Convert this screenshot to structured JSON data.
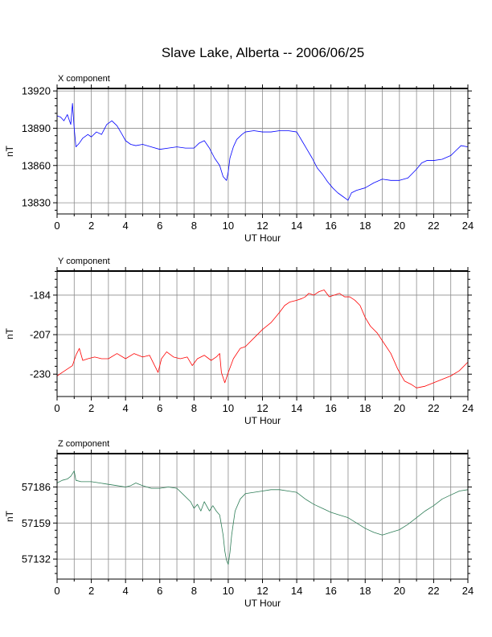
{
  "title": "Slave Lake, Alberta -- 2006/06/25",
  "chart_data": [
    {
      "type": "line",
      "panel_title": "X component",
      "xlabel": "UT Hour",
      "ylabel": "nT",
      "color": "#0000ff",
      "xlim": [
        0,
        24
      ],
      "ylim": [
        13821,
        13922
      ],
      "xticks": [
        0,
        2,
        4,
        6,
        8,
        10,
        12,
        14,
        16,
        18,
        20,
        22,
        24
      ],
      "yticks": [
        13830,
        13860,
        13890,
        13920
      ],
      "grid": true,
      "x": [
        0,
        0.2,
        0.4,
        0.6,
        0.8,
        0.9,
        1.0,
        1.1,
        1.3,
        1.5,
        1.8,
        2.0,
        2.3,
        2.6,
        2.9,
        3.2,
        3.5,
        3.8,
        4.0,
        4.3,
        4.6,
        5.0,
        5.5,
        6.0,
        6.5,
        7.0,
        7.5,
        8.0,
        8.3,
        8.6,
        8.9,
        9.2,
        9.5,
        9.7,
        9.9,
        10.0,
        10.1,
        10.3,
        10.5,
        10.8,
        11.0,
        11.5,
        12.0,
        12.5,
        13.0,
        13.5,
        14.0,
        14.3,
        14.6,
        14.9,
        15.2,
        15.5,
        15.8,
        16.1,
        16.4,
        16.7,
        16.9,
        17.0,
        17.2,
        17.5,
        18.0,
        18.5,
        19.0,
        19.5,
        20.0,
        20.5,
        21.0,
        21.3,
        21.6,
        22.0,
        22.5,
        23.0,
        23.3,
        23.6,
        24.0
      ],
      "y": [
        13900,
        13899,
        13896,
        13901,
        13893,
        13910,
        13890,
        13875,
        13878,
        13882,
        13885,
        13883,
        13887,
        13885,
        13893,
        13896,
        13892,
        13885,
        13880,
        13877,
        13876,
        13877,
        13875,
        13873,
        13874,
        13875,
        13874,
        13874,
        13878,
        13880,
        13874,
        13866,
        13860,
        13851,
        13848,
        13855,
        13866,
        13875,
        13881,
        13885,
        13887,
        13888,
        13887,
        13887,
        13888,
        13888,
        13887,
        13880,
        13873,
        13866,
        13858,
        13853,
        13847,
        13842,
        13838,
        13835,
        13833,
        13832,
        13838,
        13840,
        13842,
        13846,
        13849,
        13848,
        13848,
        13850,
        13857,
        13862,
        13864,
        13864,
        13865,
        13868,
        13872,
        13876,
        13875
      ]
    },
    {
      "type": "line",
      "panel_title": "Y component",
      "xlabel": "UT Hour",
      "ylabel": "nT",
      "color": "#ff0000",
      "xlim": [
        0,
        24
      ],
      "ylim": [
        -243,
        -170
      ],
      "xticks": [
        0,
        2,
        4,
        6,
        8,
        10,
        12,
        14,
        16,
        18,
        20,
        22,
        24
      ],
      "yticks": [
        -230,
        -207,
        -184
      ],
      "grid": true,
      "x": [
        0,
        0.3,
        0.6,
        0.9,
        1.1,
        1.3,
        1.5,
        1.8,
        2.2,
        2.6,
        3.0,
        3.5,
        4.0,
        4.5,
        5.0,
        5.4,
        5.7,
        5.9,
        6.1,
        6.4,
        6.8,
        7.2,
        7.6,
        7.9,
        8.2,
        8.6,
        9.0,
        9.3,
        9.5,
        9.6,
        9.8,
        10.0,
        10.3,
        10.7,
        11.0,
        11.5,
        12.0,
        12.5,
        13.0,
        13.3,
        13.6,
        14.0,
        14.3,
        14.5,
        14.7,
        15.0,
        15.3,
        15.6,
        15.9,
        16.2,
        16.5,
        16.8,
        17.1,
        17.4,
        17.7,
        18.0,
        18.3,
        18.7,
        19.1,
        19.5,
        19.9,
        20.3,
        20.7,
        21.0,
        21.5,
        22.0,
        22.5,
        23.0,
        23.5,
        24.0
      ],
      "y": [
        -231,
        -229,
        -227,
        -225,
        -219,
        -215,
        -222,
        -221,
        -220,
        -221,
        -221,
        -218,
        -221,
        -218,
        -220,
        -219,
        -225,
        -229,
        -221,
        -217,
        -220,
        -221,
        -220,
        -225,
        -221,
        -219,
        -222,
        -220,
        -218,
        -229,
        -235,
        -229,
        -221,
        -215,
        -214,
        -209,
        -204,
        -200,
        -194,
        -190,
        -188,
        -187,
        -186,
        -185,
        -183,
        -184,
        -182,
        -181,
        -185,
        -184,
        -183,
        -185,
        -185,
        -187,
        -190,
        -197,
        -202,
        -206,
        -212,
        -218,
        -227,
        -234,
        -236,
        -238,
        -237,
        -235,
        -233,
        -231,
        -228,
        -223
      ]
    },
    {
      "type": "line",
      "panel_title": "Z component",
      "xlabel": "UT Hour",
      "ylabel": "nT",
      "color": "#2e7d57",
      "xlim": [
        0,
        24
      ],
      "ylim": [
        57117,
        57211
      ],
      "xticks": [
        0,
        2,
        4,
        6,
        8,
        10,
        12,
        14,
        16,
        18,
        20,
        22,
        24
      ],
      "yticks": [
        57132,
        57159,
        57186
      ],
      "grid": true,
      "x": [
        0,
        0.3,
        0.6,
        0.8,
        1.0,
        1.1,
        1.4,
        2.0,
        2.5,
        3.0,
        3.5,
        4.0,
        4.3,
        4.6,
        5.0,
        5.5,
        6.0,
        6.5,
        7.0,
        7.4,
        7.8,
        8.0,
        8.2,
        8.4,
        8.6,
        8.9,
        9.1,
        9.3,
        9.5,
        9.7,
        9.8,
        9.9,
        10.0,
        10.1,
        10.2,
        10.4,
        10.7,
        11.0,
        11.5,
        12.0,
        12.5,
        13.0,
        13.5,
        14.0,
        14.5,
        15.0,
        15.5,
        16.0,
        16.5,
        17.0,
        17.5,
        18.0,
        18.5,
        19.0,
        19.5,
        20.0,
        20.5,
        21.0,
        21.5,
        22.0,
        22.5,
        23.0,
        23.5,
        24.0
      ],
      "y": [
        57189,
        57191,
        57192,
        57194,
        57198,
        57191,
        57190,
        57190,
        57189,
        57188,
        57187,
        57186,
        57187,
        57189,
        57187,
        57185,
        57185,
        57186,
        57185,
        57180,
        57175,
        57170,
        57173,
        57168,
        57175,
        57168,
        57172,
        57168,
        57165,
        57150,
        57138,
        57131,
        57128,
        57137,
        57150,
        57168,
        57177,
        57181,
        57182,
        57183,
        57184,
        57184,
        57183,
        57182,
        57177,
        57173,
        57170,
        57167,
        57165,
        57163,
        57159,
        57155,
        57152,
        57150,
        57152,
        57154,
        57158,
        57163,
        57168,
        57172,
        57177,
        57180,
        57183,
        57184
      ]
    }
  ]
}
